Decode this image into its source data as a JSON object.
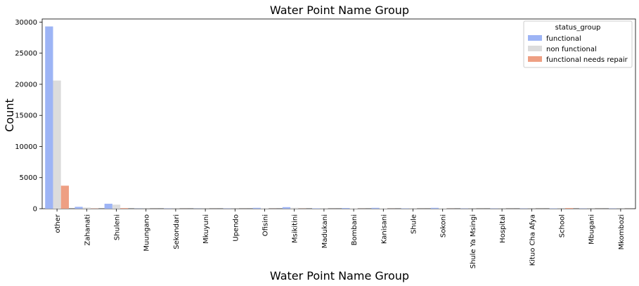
{
  "chart_data": {
    "type": "bar",
    "title": "Water Point Name Group",
    "xlabel": "Water Point Name Group",
    "ylabel": "Count",
    "ylim": [
      0,
      30000
    ],
    "yticks": [
      0,
      5000,
      10000,
      15000,
      20000,
      25000,
      30000
    ],
    "categories": [
      "other",
      "Zahanati",
      "Shuleni",
      "Muungano",
      "Sekondari",
      "Mkuyuni",
      "Upendo",
      "Ofisini",
      "Msikitini",
      "Madukani",
      "Bombani",
      "Kanisani",
      "Shule",
      "Sokoni",
      "Shule Ya Msingi",
      "Hospital",
      "Kituo Cha Afya",
      "School",
      "Mbugani",
      "Mkombozi"
    ],
    "legend": {
      "title": "status_group",
      "position": "top-right"
    },
    "series": [
      {
        "name": "functional",
        "color": "#9db4f5",
        "values": [
          29300,
          300,
          800,
          30,
          40,
          30,
          40,
          140,
          250,
          60,
          110,
          140,
          50,
          140,
          40,
          40,
          40,
          50,
          40,
          40
        ]
      },
      {
        "name": "non functional",
        "color": "#dcdcdc",
        "values": [
          20600,
          190,
          650,
          25,
          30,
          25,
          25,
          90,
          150,
          40,
          60,
          70,
          40,
          70,
          25,
          30,
          25,
          30,
          25,
          25
        ]
      },
      {
        "name": "functional needs repair",
        "color": "#ee9f83",
        "values": [
          3700,
          40,
          100,
          5,
          5,
          5,
          5,
          10,
          20,
          5,
          10,
          10,
          5,
          10,
          5,
          5,
          5,
          110,
          5,
          5
        ]
      }
    ]
  }
}
